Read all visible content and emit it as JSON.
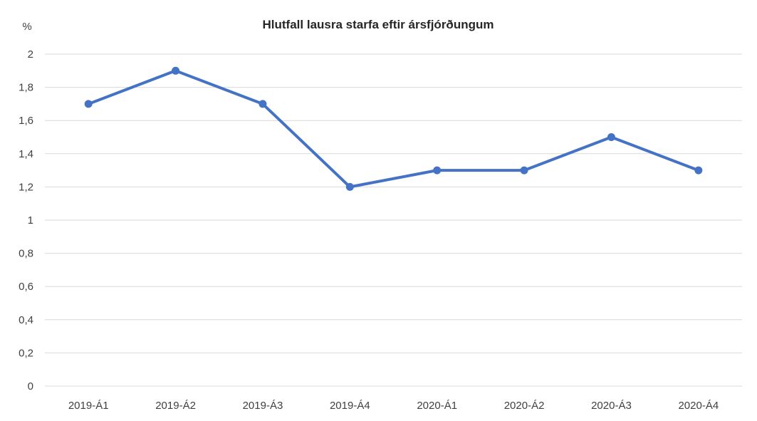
{
  "chart_data": {
    "type": "line",
    "title": "Hlutfall lausra starfa eftir ársfjórðungum",
    "unit_label": "%",
    "categories": [
      "2019-Á1",
      "2019-Á2",
      "2019-Á3",
      "2019-Á4",
      "2020-Á1",
      "2020-Á2",
      "2020-Á3",
      "2020-Á4"
    ],
    "series": [
      {
        "name": "Hlutfall lausra starfa",
        "values": [
          1.7,
          1.9,
          1.7,
          1.2,
          1.3,
          1.3,
          1.5,
          1.3
        ]
      }
    ],
    "ylim": [
      0,
      2
    ],
    "ytick_step": 0.2,
    "ytick_labels": [
      "0",
      "0,2",
      "0,4",
      "0,6",
      "0,8",
      "1",
      "1,2",
      "1,4",
      "1,6",
      "1,8",
      "2"
    ],
    "decimal_separator": ",",
    "grid": true,
    "legend": "none",
    "line_color": "#4472C4",
    "marker_color": "#4472C4",
    "gridline_color": "#D9D9D9",
    "marker": "circle"
  }
}
